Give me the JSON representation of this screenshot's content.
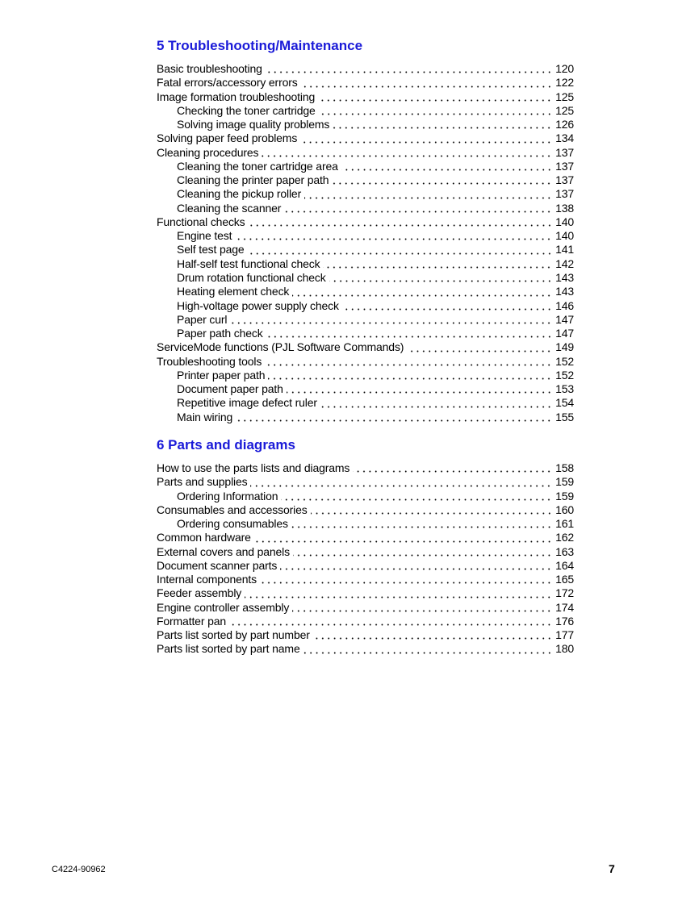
{
  "sections": [
    {
      "title": "5 Troubleshooting/Maintenance",
      "entries": [
        {
          "t": "Basic troubleshooting",
          "p": "120",
          "sub": false
        },
        {
          "t": "Fatal errors/accessory errors",
          "p": "122",
          "sub": false
        },
        {
          "t": "Image formation troubleshooting",
          "p": "125",
          "sub": false
        },
        {
          "t": "Checking the toner cartridge",
          "p": "125",
          "sub": true
        },
        {
          "t": "Solving image quality problems",
          "p": "126",
          "sub": true
        },
        {
          "t": "Solving paper feed problems",
          "p": "134",
          "sub": false
        },
        {
          "t": "Cleaning procedures",
          "p": "137",
          "sub": false
        },
        {
          "t": "Cleaning the toner cartridge area",
          "p": "137",
          "sub": true
        },
        {
          "t": "Cleaning the printer paper path",
          "p": "137",
          "sub": true
        },
        {
          "t": "Cleaning the pickup roller",
          "p": "137",
          "sub": true
        },
        {
          "t": "Cleaning the scanner",
          "p": "138",
          "sub": true
        },
        {
          "t": "Functional checks",
          "p": "140",
          "sub": false
        },
        {
          "t": "Engine test",
          "p": "140",
          "sub": true
        },
        {
          "t": "Self test page",
          "p": "141",
          "sub": true
        },
        {
          "t": "Half-self test functional check",
          "p": "142",
          "sub": true
        },
        {
          "t": "Drum rotation functional check",
          "p": "143",
          "sub": true
        },
        {
          "t": "Heating element check",
          "p": "143",
          "sub": true
        },
        {
          "t": "High-voltage power supply check",
          "p": "146",
          "sub": true
        },
        {
          "t": "Paper curl",
          "p": "147",
          "sub": true
        },
        {
          "t": "Paper path check",
          "p": "147",
          "sub": true
        },
        {
          "t": "ServiceMode functions (PJL Software Commands)",
          "p": "149",
          "sub": false
        },
        {
          "t": "Troubleshooting tools",
          "p": "152",
          "sub": false
        },
        {
          "t": "Printer paper path",
          "p": "152",
          "sub": true
        },
        {
          "t": "Document paper path",
          "p": "153",
          "sub": true
        },
        {
          "t": "Repetitive image defect ruler",
          "p": "154",
          "sub": true
        },
        {
          "t": "Main wiring",
          "p": "155",
          "sub": true
        }
      ]
    },
    {
      "title": "6 Parts and diagrams",
      "entries": [
        {
          "t": "How to use the parts lists and diagrams",
          "p": "158",
          "sub": false
        },
        {
          "t": "Parts and supplies",
          "p": "159",
          "sub": false
        },
        {
          "t": "Ordering Information",
          "p": "159",
          "sub": true
        },
        {
          "t": "Consumables and accessories",
          "p": "160",
          "sub": false
        },
        {
          "t": "Ordering consumables",
          "p": "161",
          "sub": true
        },
        {
          "t": "Common hardware",
          "p": "162",
          "sub": false
        },
        {
          "t": "External covers and panels",
          "p": "163",
          "sub": false
        },
        {
          "t": "Document scanner parts",
          "p": "164",
          "sub": false
        },
        {
          "t": "Internal components",
          "p": "165",
          "sub": false
        },
        {
          "t": "Feeder assembly",
          "p": "172",
          "sub": false
        },
        {
          "t": "Engine controller assembly",
          "p": "174",
          "sub": false
        },
        {
          "t": "Formatter pan",
          "p": "176",
          "sub": false
        },
        {
          "t": "Parts list sorted by part number",
          "p": "177",
          "sub": false
        },
        {
          "t": "Parts list sorted by part name",
          "p": "180",
          "sub": false
        }
      ]
    }
  ],
  "footer": {
    "doc_number": "C4224-90962",
    "page_number": "7"
  },
  "colors": {
    "heading": "#1a1ad8"
  }
}
